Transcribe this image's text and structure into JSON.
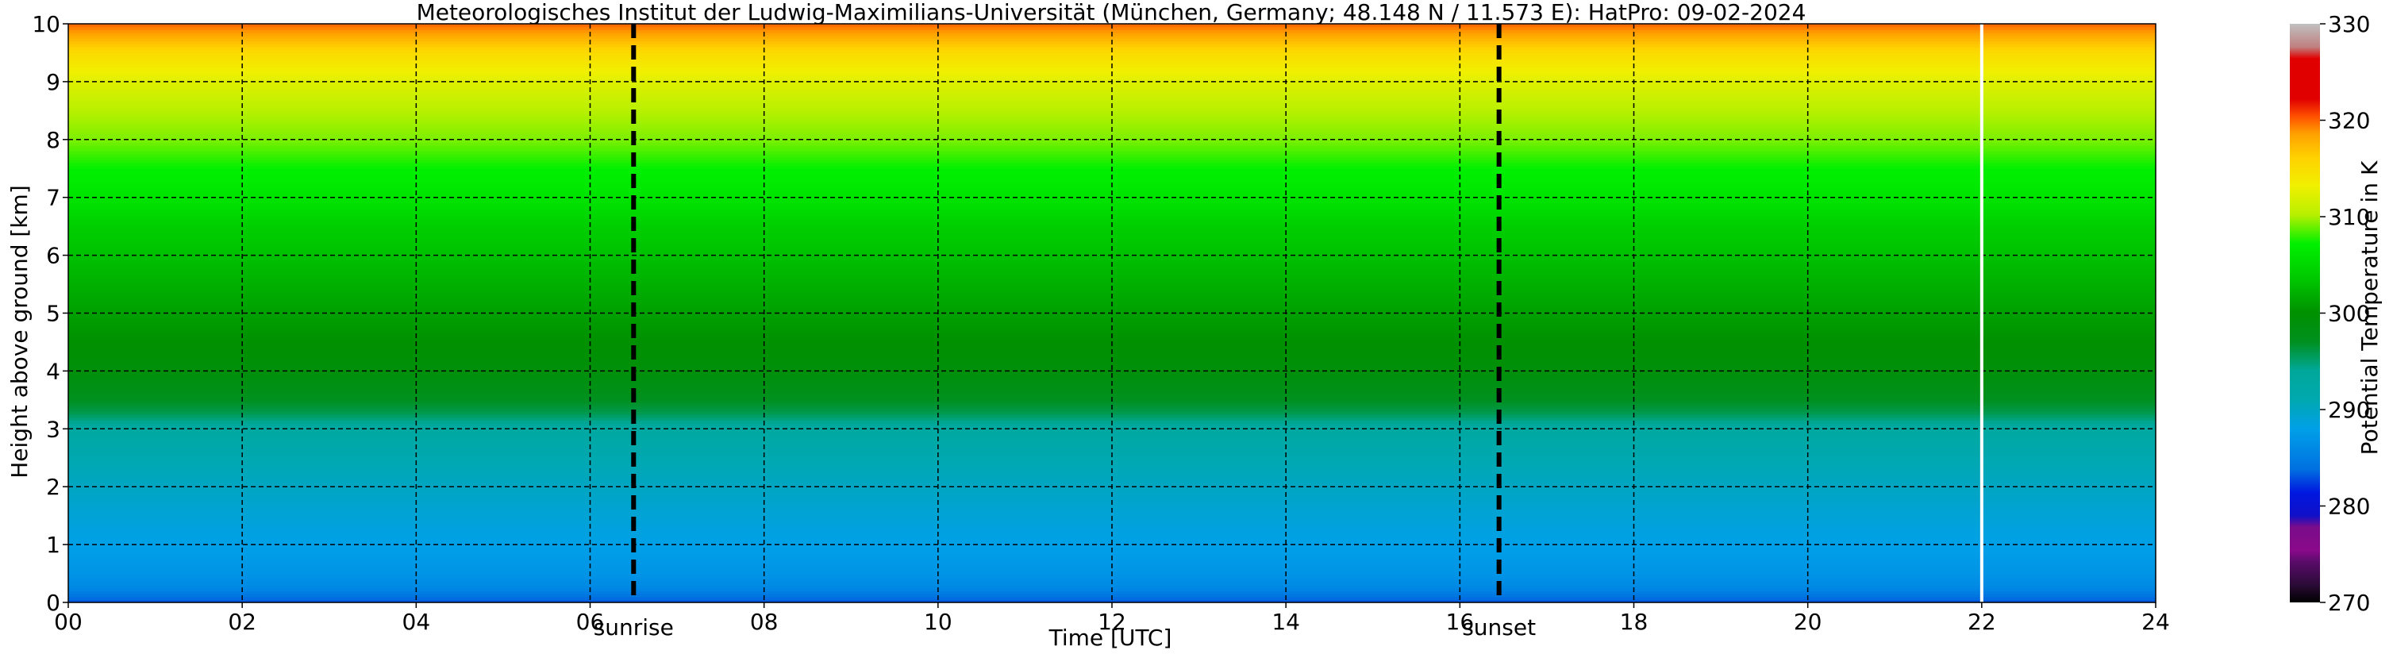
{
  "chart_data": {
    "type": "heatmap",
    "title": "Meteorologisches Institut der Ludwig-Maximilians-Universität (München, Germany; 48.148 N / 11.573 E):    HatPro: 09-02-2024",
    "xlabel": "Time [UTC]",
    "ylabel": "Height above ground [km]",
    "xlim": [
      0,
      24
    ],
    "ylim": [
      0,
      10
    ],
    "x_ticks": [
      "00",
      "02",
      "04",
      "06",
      "08",
      "10",
      "12",
      "14",
      "16",
      "18",
      "20",
      "22",
      "24"
    ],
    "y_ticks": [
      "0",
      "1",
      "2",
      "3",
      "4",
      "5",
      "6",
      "7",
      "8",
      "9",
      "10"
    ],
    "grid": true,
    "colorbar": {
      "label": "Potential Temperature in K",
      "min": 270,
      "max": 330,
      "ticks": [
        "270",
        "280",
        "290",
        "300",
        "310",
        "320",
        "330"
      ]
    },
    "annotations": [
      {
        "label": "sunrise",
        "x": 6.5
      },
      {
        "label": "sunset",
        "x": 16.45
      }
    ],
    "data_gap_x": 22.0,
    "profile": {
      "height_km": [
        0,
        0.25,
        0.5,
        1.0,
        1.5,
        2.0,
        2.5,
        3.0,
        3.3,
        3.7,
        4.0,
        4.5,
        5.0,
        5.5,
        6.0,
        6.5,
        7.0,
        7.5,
        8.0,
        8.5,
        9.0,
        9.5,
        9.8,
        10.0
      ],
      "theta_K": [
        283,
        286,
        287,
        288,
        289,
        290,
        291,
        293,
        296,
        298,
        299,
        300,
        301,
        302,
        303,
        304,
        306,
        307,
        309,
        310,
        312,
        315,
        318,
        320
      ]
    }
  }
}
